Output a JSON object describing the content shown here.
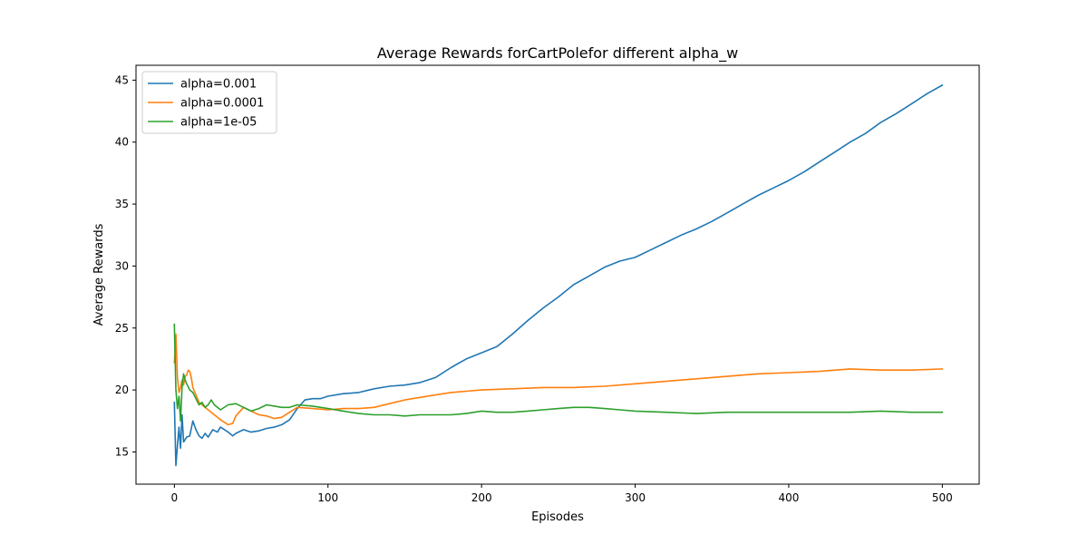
{
  "chart_data": {
    "type": "line",
    "title": "Average Rewards forCartPolefor different alpha_w",
    "xlabel": "Episodes",
    "ylabel": "Average Rewards",
    "xlim": [
      -25,
      524
    ],
    "ylim": [
      12.4,
      46.2
    ],
    "xticks": [
      0,
      100,
      200,
      300,
      400,
      500
    ],
    "yticks": [
      15,
      20,
      25,
      30,
      35,
      40,
      45
    ],
    "grid": false,
    "legend_position": "top-left",
    "series": [
      {
        "name": "alpha=0.001",
        "color": "#1f77b4",
        "x": [
          0,
          1,
          2,
          3,
          4,
          5,
          6,
          7,
          8,
          10,
          12,
          14,
          16,
          18,
          20,
          22,
          25,
          28,
          30,
          35,
          38,
          40,
          45,
          50,
          55,
          60,
          65,
          70,
          75,
          80,
          85,
          90,
          95,
          100,
          110,
          120,
          130,
          140,
          150,
          160,
          170,
          180,
          190,
          200,
          210,
          220,
          230,
          240,
          250,
          260,
          270,
          280,
          290,
          300,
          310,
          320,
          330,
          340,
          350,
          360,
          370,
          380,
          390,
          400,
          410,
          420,
          430,
          440,
          450,
          460,
          470,
          480,
          490,
          500
        ],
        "values": [
          19.0,
          13.9,
          15.5,
          17.0,
          15.3,
          18.0,
          15.8,
          16.0,
          16.2,
          16.3,
          17.5,
          16.8,
          16.3,
          16.1,
          16.5,
          16.2,
          16.8,
          16.6,
          17.0,
          16.6,
          16.3,
          16.5,
          16.8,
          16.6,
          16.7,
          16.9,
          17.0,
          17.2,
          17.6,
          18.5,
          19.2,
          19.3,
          19.3,
          19.5,
          19.7,
          19.8,
          20.1,
          20.3,
          20.4,
          20.6,
          21.0,
          21.8,
          22.5,
          23.0,
          23.5,
          24.5,
          25.6,
          26.6,
          27.5,
          28.5,
          29.2,
          29.9,
          30.4,
          30.7,
          31.3,
          31.9,
          32.5,
          33.0,
          33.6,
          34.3,
          35.0,
          35.7,
          36.3,
          36.9,
          37.6,
          38.4,
          39.2,
          40.0,
          40.7,
          41.6,
          42.3,
          43.1,
          43.9,
          44.6
        ]
      },
      {
        "name": "alpha=0.0001",
        "color": "#ff7f0e",
        "x": [
          0,
          1,
          2,
          3,
          4,
          5,
          6,
          7,
          8,
          9,
          10,
          11,
          12,
          14,
          16,
          18,
          20,
          25,
          30,
          35,
          38,
          40,
          45,
          50,
          55,
          60,
          65,
          70,
          75,
          80,
          90,
          100,
          110,
          120,
          130,
          140,
          150,
          160,
          170,
          180,
          190,
          200,
          220,
          240,
          260,
          280,
          300,
          320,
          340,
          360,
          380,
          400,
          420,
          440,
          460,
          480,
          500
        ],
        "values": [
          22.2,
          24.5,
          21.0,
          19.8,
          20.2,
          20.8,
          20.4,
          21.1,
          21.2,
          21.6,
          21.5,
          21.0,
          20.2,
          19.6,
          19.0,
          18.8,
          18.6,
          18.1,
          17.6,
          17.2,
          17.3,
          17.9,
          18.6,
          18.3,
          18.0,
          17.9,
          17.7,
          17.8,
          18.2,
          18.6,
          18.5,
          18.4,
          18.5,
          18.5,
          18.6,
          18.9,
          19.2,
          19.4,
          19.6,
          19.8,
          19.9,
          20.0,
          20.1,
          20.2,
          20.2,
          20.3,
          20.5,
          20.7,
          20.9,
          21.1,
          21.3,
          21.4,
          21.5,
          21.7,
          21.6,
          21.6,
          21.7
        ]
      },
      {
        "name": "alpha=1e-05",
        "color": "#2ca02c",
        "x": [
          0,
          1,
          2,
          3,
          4,
          5,
          6,
          7,
          8,
          10,
          12,
          14,
          16,
          18,
          20,
          22,
          24,
          26,
          28,
          30,
          35,
          40,
          45,
          50,
          55,
          60,
          65,
          70,
          75,
          80,
          90,
          100,
          110,
          120,
          130,
          140,
          150,
          160,
          170,
          180,
          190,
          200,
          210,
          220,
          230,
          240,
          250,
          260,
          270,
          280,
          290,
          300,
          320,
          340,
          360,
          380,
          400,
          420,
          440,
          460,
          480,
          500
        ],
        "values": [
          25.3,
          20.0,
          18.5,
          19.5,
          17.5,
          20.2,
          21.3,
          20.8,
          20.5,
          20.0,
          19.8,
          19.3,
          18.8,
          19.0,
          18.6,
          18.8,
          19.2,
          18.8,
          18.6,
          18.4,
          18.8,
          18.9,
          18.6,
          18.3,
          18.5,
          18.8,
          18.7,
          18.6,
          18.6,
          18.8,
          18.7,
          18.5,
          18.3,
          18.1,
          18.0,
          18.0,
          17.9,
          18.0,
          18.0,
          18.0,
          18.1,
          18.3,
          18.2,
          18.2,
          18.3,
          18.4,
          18.5,
          18.6,
          18.6,
          18.5,
          18.4,
          18.3,
          18.2,
          18.1,
          18.2,
          18.2,
          18.2,
          18.2,
          18.2,
          18.3,
          18.2,
          18.2
        ]
      }
    ]
  }
}
